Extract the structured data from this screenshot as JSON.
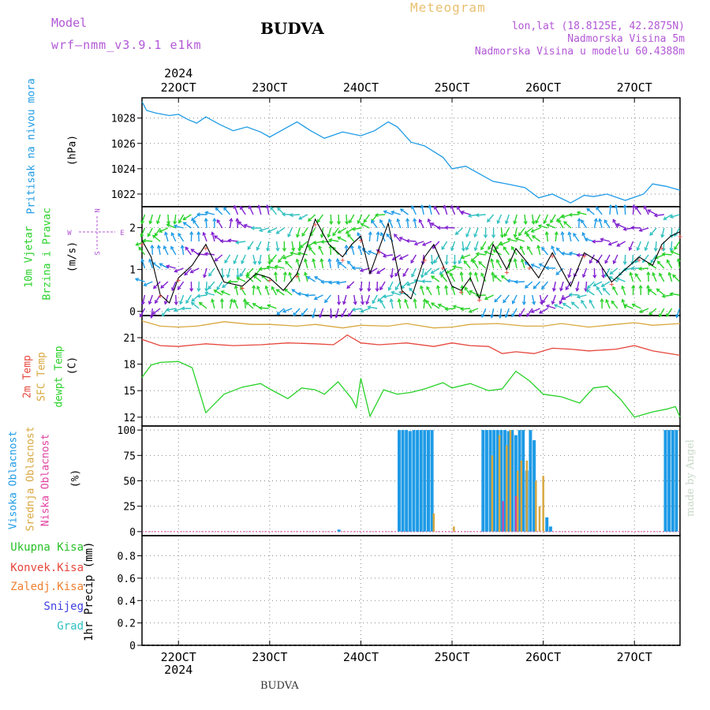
{
  "header": {
    "model_label": "Model",
    "model_name": "wrf—nmm_v3.9.1  e1km",
    "meteogram": "Meteogram",
    "station": "BUDVA",
    "lonlat": "lon,lat (18.8125E, 42.2875N)",
    "altitude": "Nadmorska Visina 5m",
    "model_altitude": "Nadmorska Visina u modelu 60.4388m",
    "bottom_station": "BUDVA",
    "credit": "made by Angel"
  },
  "time_axis": {
    "year": "2024",
    "days": [
      "22OCT",
      "23OCT",
      "24OCT",
      "25OCT",
      "26OCT",
      "27OCT"
    ],
    "start_day": 21.6,
    "end_day": 27.5
  },
  "labels": {
    "pressure_title": "Pritisak na nivou mora",
    "pressure_unit": "(hPa)",
    "wind_title1": "10m Vjetar",
    "wind_title2": "Brzina i Pravac",
    "wind_unit": "(m/s)",
    "compass_n": "N",
    "compass_s": "S",
    "compass_e": "E",
    "compass_w": "W",
    "temp_2m": "2m Temp",
    "temp_sfc": "SFC Temp",
    "temp_dew": "dewpt Temp",
    "temp_unit": "(C)",
    "cloud_high": "Visoka Oblacnost",
    "cloud_mid": "Srednja Oblacnost",
    "cloud_low": "Niska Oblacnost",
    "cloud_unit": "(%)",
    "precip_unit": "1hr Precip (mm)",
    "precip_total": "Ukupna Kisa",
    "precip_conv": "Konvek.Kisa",
    "precip_frz": "Zaledj.Kisa",
    "precip_snow": "Snijeg",
    "precip_grad": "Grad"
  },
  "colors": {
    "pressure": "#1e9be6",
    "temp_2m": "#e6463c",
    "temp_sfc": "#d8a840",
    "dewpoint": "#28d228",
    "cloud_high": "#1e9be6",
    "cloud_mid": "#d8a840",
    "cloud_low": "#e040a0",
    "wind_speed": "#000000",
    "gust": "#e6463c",
    "precip_total": "#28c028",
    "precip_conv": "#e6463c",
    "precip_frz": "#f08030",
    "precip_snow": "#4040e0",
    "precip_grad": "#30c0c0",
    "title_purple": "#b257d6"
  },
  "chart_data": [
    {
      "type": "line",
      "ylabel": "Pritisak na nivou mora (hPa)",
      "ylim": [
        1021,
        1029.6
      ],
      "yticks": [
        1022,
        1024,
        1026,
        1028
      ],
      "series": [
        {
          "x": [
            21.6,
            21.65,
            21.75,
            21.9,
            22.0,
            22.1,
            22.2,
            22.3,
            22.45,
            22.6,
            22.75,
            22.9,
            23.0,
            23.15,
            23.3,
            23.45,
            23.6,
            23.8,
            24.0,
            24.15,
            24.3,
            24.4,
            24.55,
            24.7,
            24.9,
            25.0,
            25.15,
            25.3,
            25.45,
            25.6,
            25.8,
            25.95,
            26.1,
            26.3,
            26.45,
            26.55,
            26.7,
            26.9,
            27.1,
            27.2,
            27.35,
            27.45,
            27.5
          ],
          "values": [
            1029.3,
            1028.6,
            1028.4,
            1028.2,
            1028.3,
            1027.9,
            1027.6,
            1028.1,
            1027.5,
            1027.0,
            1027.3,
            1026.9,
            1026.5,
            1027.1,
            1027.7,
            1027.0,
            1026.4,
            1026.9,
            1026.6,
            1027.0,
            1027.7,
            1027.3,
            1026.1,
            1025.8,
            1024.9,
            1024.0,
            1024.2,
            1023.6,
            1023.0,
            1022.8,
            1022.5,
            1021.7,
            1022.0,
            1021.3,
            1021.9,
            1021.8,
            1022.0,
            1021.5,
            1022.0,
            1022.8,
            1022.6,
            1022.4,
            1022.3
          ]
        }
      ]
    },
    {
      "type": "line",
      "ylabel": "10m Vjetar Brzina i Pravac (m/s)",
      "ylim": [
        -0.1,
        2.5
      ],
      "yticks": [
        0,
        1,
        2
      ],
      "series": [
        {
          "x": [
            21.6,
            21.7,
            21.8,
            21.9,
            22.0,
            22.15,
            22.3,
            22.5,
            22.7,
            22.85,
            23.0,
            23.15,
            23.3,
            23.4,
            23.5,
            23.65,
            23.8,
            23.9,
            24.0,
            24.1,
            24.2,
            24.3,
            24.45,
            24.55,
            24.7,
            24.8,
            24.9,
            25.0,
            25.1,
            25.2,
            25.3,
            25.45,
            25.6,
            25.7,
            25.85,
            25.95,
            26.1,
            26.3,
            26.45,
            26.6,
            26.75,
            26.9,
            27.05,
            27.2,
            27.3,
            27.4,
            27.5
          ],
          "values": [
            1.7,
            1.3,
            0.4,
            0.2,
            0.8,
            1.1,
            1.6,
            0.7,
            0.6,
            0.9,
            0.8,
            0.5,
            0.9,
            1.5,
            2.2,
            1.6,
            1.3,
            1.6,
            1.8,
            0.9,
            1.5,
            2.1,
            0.5,
            0.3,
            1.3,
            1.6,
            1.1,
            0.6,
            0.5,
            0.8,
            0.3,
            1.6,
            1.0,
            1.5,
            1.1,
            0.8,
            1.4,
            0.6,
            1.4,
            1.2,
            0.7,
            1.0,
            1.3,
            1.1,
            1.6,
            1.8,
            1.9
          ]
        }
      ]
    },
    {
      "type": "line",
      "ylabel": "2m Temp / SFC Temp / dewpt Temp (C)",
      "ylim": [
        11,
        23.5
      ],
      "yticks": [
        12,
        15,
        18,
        21
      ],
      "series": [
        {
          "name": "SFC Temp",
          "x": [
            21.6,
            21.8,
            22.0,
            22.2,
            22.5,
            22.8,
            23.0,
            23.3,
            23.5,
            23.8,
            24.0,
            24.3,
            24.5,
            24.8,
            25.0,
            25.2,
            25.5,
            25.8,
            26.0,
            26.2,
            26.5,
            26.8,
            27.0,
            27.2,
            27.5
          ],
          "values": [
            22.9,
            22.3,
            22.2,
            22.3,
            22.8,
            22.5,
            22.5,
            22.3,
            22.5,
            22.1,
            22.4,
            22.3,
            22.6,
            22.1,
            22.2,
            22.5,
            22.6,
            22.3,
            22.3,
            22.6,
            22.2,
            22.5,
            22.7,
            22.4,
            22.6
          ]
        },
        {
          "name": "2m Temp",
          "x": [
            21.6,
            21.8,
            22.0,
            22.3,
            22.6,
            22.9,
            23.2,
            23.5,
            23.7,
            23.8,
            23.85,
            24.0,
            24.2,
            24.5,
            24.8,
            25.0,
            25.2,
            25.4,
            25.55,
            25.7,
            25.9,
            26.1,
            26.3,
            26.5,
            26.8,
            27.0,
            27.2,
            27.5
          ],
          "values": [
            20.8,
            20.1,
            20.0,
            20.3,
            20.1,
            20.2,
            20.4,
            20.3,
            20.2,
            20.9,
            21.3,
            20.4,
            20.2,
            20.4,
            20.0,
            20.4,
            20.1,
            20.0,
            19.2,
            19.4,
            19.2,
            19.8,
            19.7,
            19.5,
            19.7,
            20.1,
            19.5,
            19.0
          ]
        },
        {
          "name": "dewpt Temp",
          "x": [
            21.6,
            21.7,
            21.8,
            22.0,
            22.15,
            22.3,
            22.5,
            22.7,
            22.9,
            23.0,
            23.2,
            23.35,
            23.5,
            23.6,
            23.75,
            23.9,
            23.95,
            24.0,
            24.1,
            24.25,
            24.4,
            24.55,
            24.7,
            24.9,
            25.0,
            25.2,
            25.4,
            25.55,
            25.7,
            25.85,
            26.0,
            26.2,
            26.4,
            26.55,
            26.7,
            26.85,
            27.0,
            27.2,
            27.35,
            27.45,
            27.5
          ],
          "values": [
            16.5,
            17.9,
            18.2,
            18.3,
            17.6,
            12.5,
            14.6,
            15.4,
            15.8,
            15.2,
            14.1,
            15.3,
            15.1,
            14.6,
            16.0,
            14.1,
            13.1,
            16.4,
            12.1,
            15.1,
            14.6,
            14.8,
            15.2,
            15.9,
            15.3,
            15.8,
            15.0,
            15.2,
            17.2,
            16.1,
            14.6,
            14.3,
            13.6,
            15.3,
            15.5,
            14.0,
            12.0,
            12.6,
            12.9,
            13.2,
            12.0
          ]
        }
      ]
    },
    {
      "type": "bar",
      "ylabel": "Visoka / Srednja / Niska Oblacnost (%)",
      "ylim": [
        -4,
        104
      ],
      "yticks": [
        0,
        25,
        50,
        75,
        100
      ],
      "series": [
        {
          "name": "Visoka Oblacnost",
          "x": [
            23.76,
            24.42,
            24.46,
            24.5,
            24.54,
            24.58,
            24.62,
            24.66,
            24.7,
            24.74,
            24.78,
            25.34,
            25.38,
            25.42,
            25.46,
            25.5,
            25.54,
            25.58,
            25.62,
            25.66,
            25.7,
            25.74,
            25.78,
            25.82,
            25.86,
            25.9,
            26.04,
            26.08,
            27.34,
            27.38,
            27.42,
            27.46
          ],
          "values": [
            2,
            100,
            100,
            100,
            99,
            100,
            100,
            100,
            100,
            100,
            100,
            100,
            100,
            100,
            100,
            100,
            100,
            100,
            99,
            100,
            95,
            100,
            100,
            60,
            100,
            90,
            14,
            5,
            100,
            100,
            100,
            100
          ]
        },
        {
          "name": "Srednja Oblacnost",
          "x": [
            24.8,
            25.02,
            25.44,
            25.52,
            25.6,
            25.64,
            25.72,
            25.76,
            25.82,
            25.92,
            25.96,
            26.0
          ],
          "values": [
            18,
            5,
            75,
            95,
            85,
            100,
            60,
            70,
            70,
            50,
            25,
            55
          ]
        },
        {
          "name": "Niska Oblacnost",
          "x": [
            25.56,
            25.7
          ],
          "values": [
            30,
            35
          ]
        }
      ]
    },
    {
      "type": "line",
      "ylabel": "1hr Precip (mm)",
      "ylim": [
        0,
        0.98
      ],
      "yticks": [
        0,
        0.2,
        0.4,
        0.6,
        0.8
      ],
      "series": [
        {
          "name": "Ukupna Kisa",
          "x": [
            21.6,
            27.5
          ],
          "values": [
            0,
            0
          ]
        }
      ]
    }
  ]
}
